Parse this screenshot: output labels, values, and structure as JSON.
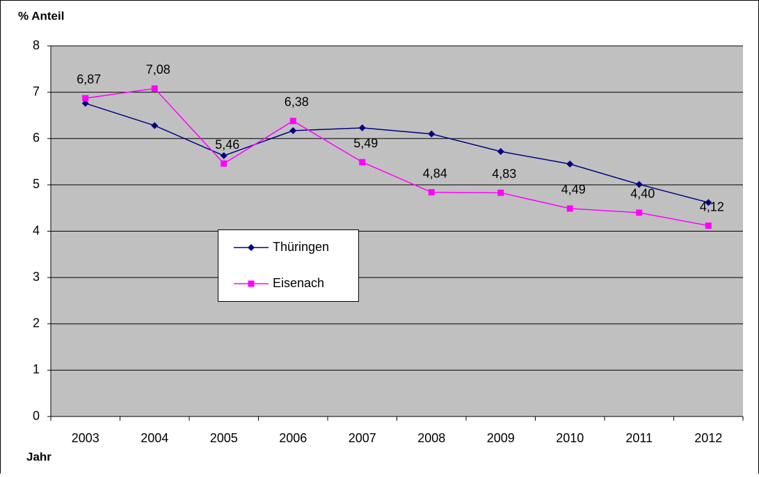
{
  "chart_data": {
    "type": "line",
    "y_label": "% Anteil",
    "x_label": "Jahr",
    "categories": [
      "2003",
      "2004",
      "2005",
      "2006",
      "2007",
      "2008",
      "2009",
      "2010",
      "2011",
      "2012"
    ],
    "series": [
      {
        "name": "Thüringen",
        "color": "#000080",
        "marker": "diamond",
        "values": [
          6.76,
          6.28,
          5.63,
          6.17,
          6.23,
          6.1,
          5.72,
          5.45,
          5.01,
          4.62
        ]
      },
      {
        "name": "Eisenach",
        "color": "#ff00ff",
        "marker": "square",
        "values": [
          6.87,
          7.08,
          5.46,
          6.38,
          5.49,
          4.84,
          4.83,
          4.49,
          4.4,
          4.12
        ],
        "value_labels": [
          "6,87",
          "7,08",
          "5,46",
          "6,38",
          "5,49",
          "4,84",
          "4,83",
          "4,49",
          "4,40",
          "4,12"
        ]
      }
    ],
    "ylim": [
      0,
      8
    ],
    "yticks": [
      0,
      1,
      2,
      3,
      4,
      5,
      6,
      7,
      8
    ],
    "grid": true,
    "plot_background": "#c0c0c0"
  }
}
